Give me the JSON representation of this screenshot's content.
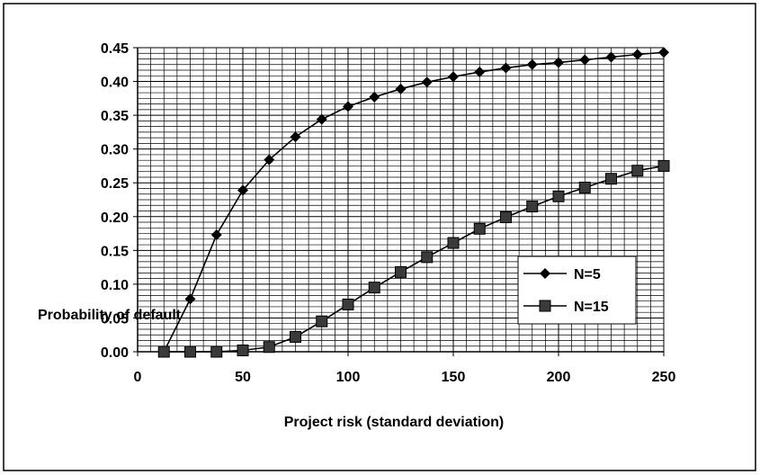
{
  "chart_data": {
    "type": "line",
    "title": "",
    "xlabel": "Project risk (standard deviation)",
    "ylabel": "Probability of default",
    "xlim": [
      0,
      250
    ],
    "ylim": [
      0,
      0.45
    ],
    "x_ticks": [
      "0",
      "50",
      "100",
      "150",
      "200",
      "250"
    ],
    "y_ticks": [
      "0.00",
      "0.05",
      "0.10",
      "0.15",
      "0.20",
      "0.25",
      "0.30",
      "0.35",
      "0.40",
      "0.45"
    ],
    "grid": true,
    "legend_position": "right",
    "series": [
      {
        "name": "N=5",
        "marker": "diamond",
        "x": [
          12.5,
          25,
          37.5,
          50,
          62.5,
          75,
          87.5,
          100,
          112.5,
          125,
          137.5,
          150,
          162.5,
          175,
          187.5,
          200,
          212.5,
          225,
          237.5,
          250
        ],
        "values": [
          0.0,
          0.078,
          0.173,
          0.239,
          0.284,
          0.318,
          0.344,
          0.363,
          0.377,
          0.389,
          0.399,
          0.407,
          0.414,
          0.42,
          0.425,
          0.428,
          0.432,
          0.436,
          0.44,
          0.443
        ]
      },
      {
        "name": "N=15",
        "marker": "square",
        "x": [
          12.5,
          25,
          37.5,
          50,
          62.5,
          75,
          87.5,
          100,
          112.5,
          125,
          137.5,
          150,
          162.5,
          175,
          187.5,
          200,
          212.5,
          225,
          237.5,
          250
        ],
        "values": [
          0.0,
          0.0,
          0.0,
          0.002,
          0.007,
          0.022,
          0.045,
          0.07,
          0.095,
          0.118,
          0.14,
          0.161,
          0.182,
          0.199,
          0.215,
          0.23,
          0.243,
          0.256,
          0.268,
          0.275
        ]
      }
    ]
  }
}
